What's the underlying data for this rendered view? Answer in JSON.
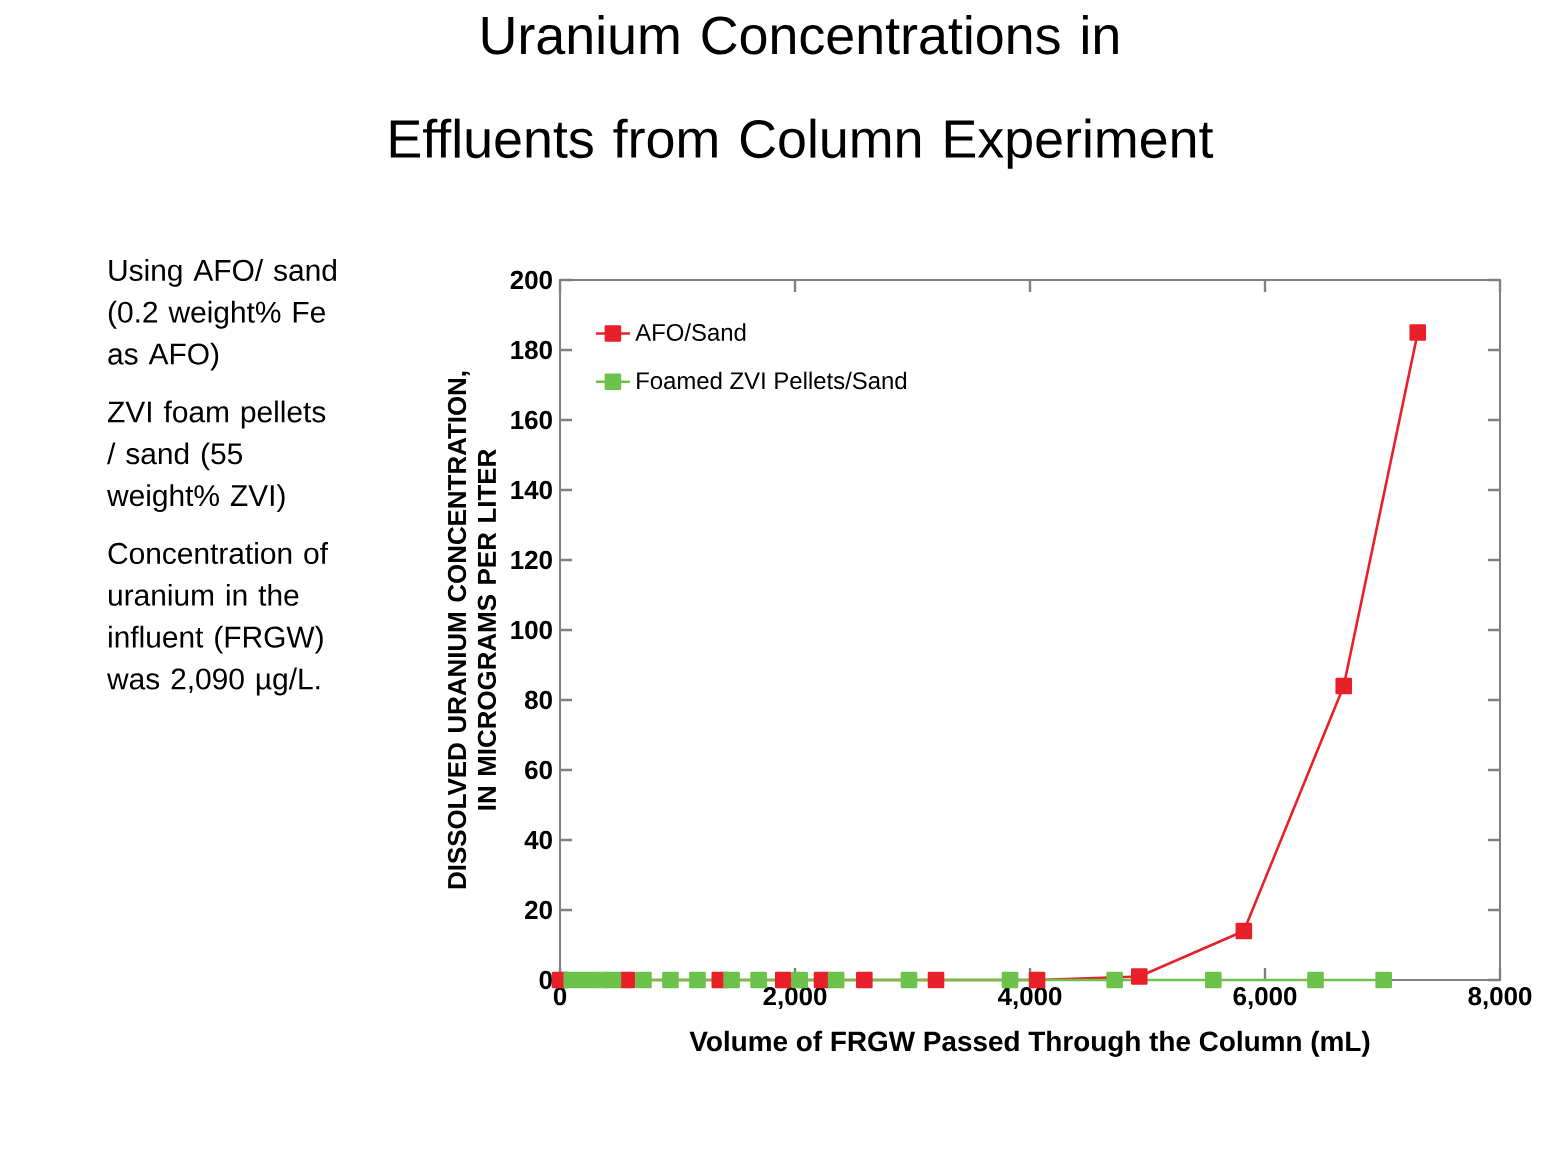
{
  "chart_data": {
    "type": "line",
    "title": "Uranium Concentrations in Effluents from Column Experiment",
    "xlabel": "Volume of FRGW Passed Through the Column (mL)",
    "ylabel": "DISSOLVED URANIUM CONCENTRATION, IN MICROGRAMS PER LITER",
    "annotations": [
      "Using AFO/ sand (0.2 weight% Fe as AFO)",
      "ZVI foam pellets / sand (55 weight% ZVI)",
      "Concentration of uranium in the influent (FRGW) was 2,090 µg/L."
    ],
    "xlim": [
      0,
      8000
    ],
    "ylim": [
      0,
      200
    ],
    "xticks": [
      0,
      {
        "value": 2000,
        "label": "2,000"
      },
      {
        "value": 4000,
        "label": "4,000"
      },
      {
        "value": 6000,
        "label": "6,000"
      },
      {
        "value": 8000,
        "label": "8,000"
      }
    ],
    "yticks": [
      0,
      20,
      40,
      60,
      80,
      100,
      120,
      140,
      160,
      180,
      200
    ],
    "legend": "top left",
    "marker": "square",
    "grid": false,
    "series": [
      {
        "name": "AFO/Sand",
        "color": "#e8202a",
        "x": [
          0,
          570,
          1360,
          1900,
          2230,
          2590,
          3200,
          4060,
          4930,
          5820,
          6670,
          7300
        ],
        "values": [
          0,
          0,
          0,
          0,
          0,
          0,
          0,
          0,
          1,
          14,
          84,
          185
        ]
      },
      {
        "name": "Foamed ZVI Pellets/Sand",
        "color": "#6cc24a",
        "x": [
          100,
          220,
          340,
          450,
          710,
          940,
          1170,
          1460,
          1690,
          2040,
          2350,
          2970,
          3830,
          4720,
          5560,
          6430,
          7010
        ],
        "values": [
          0,
          0,
          0,
          0,
          0,
          0,
          0,
          0,
          0,
          0,
          0,
          0,
          0,
          0,
          0,
          0,
          0
        ]
      }
    ]
  }
}
